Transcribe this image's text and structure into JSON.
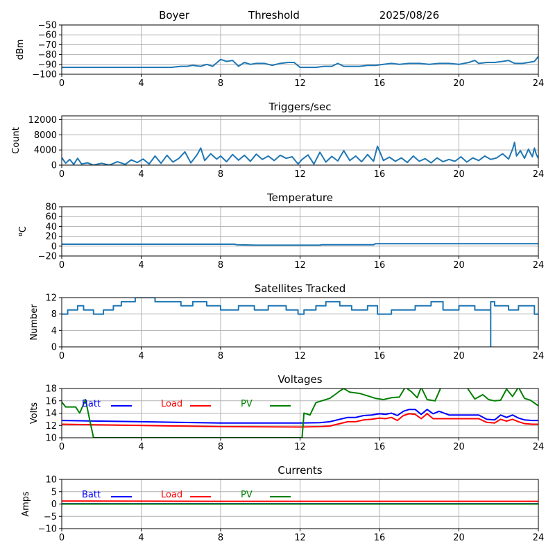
{
  "header": {
    "station": "Boyer",
    "mode": "Threshold",
    "date": "2025/08/26"
  },
  "colors": {
    "default_series": "#1f77b4",
    "batt": "#0000ff",
    "load": "#ff0000",
    "pv": "#008000",
    "grid": "#b0b0b0"
  },
  "chart_data": [
    {
      "type": "line",
      "title": "",
      "xlabel": "",
      "ylabel": "dBm",
      "xlim": [
        0,
        24
      ],
      "ylim": [
        -100,
        -50
      ],
      "xticks": [
        0,
        4,
        8,
        12,
        16,
        20,
        24
      ],
      "yticks": [
        -100,
        -90,
        -80,
        -70,
        -60,
        -50
      ],
      "ytick_labels": [
        "−100",
        "−90",
        "−80",
        "−70",
        "−60",
        "−50"
      ],
      "grid": true,
      "series": [
        {
          "color": "#1f77b4",
          "x": [
            0,
            4.7,
            5.5,
            6.0,
            6.3,
            6.6,
            7.0,
            7.3,
            7.6,
            8.0,
            8.3,
            8.6,
            8.9,
            9.2,
            9.5,
            9.8,
            10.2,
            10.6,
            11.0,
            11.4,
            11.7,
            12.0,
            12.4,
            12.8,
            13.2,
            13.6,
            13.9,
            14.2,
            14.6,
            15.0,
            15.4,
            15.8,
            16.2,
            16.6,
            17.0,
            17.5,
            18.0,
            18.5,
            19.0,
            19.5,
            20.0,
            20.5,
            20.8,
            21.0,
            21.4,
            21.8,
            22.2,
            22.5,
            22.8,
            23.2,
            23.5,
            23.8,
            24.0
          ],
          "y": [
            -93,
            -93,
            -93,
            -92,
            -92,
            -91,
            -92,
            -90,
            -92,
            -85,
            -87,
            -86,
            -92,
            -88,
            -90,
            -89,
            -89,
            -91,
            -89,
            -88,
            -88,
            -93,
            -93,
            -93,
            -92,
            -92,
            -89,
            -92,
            -92,
            -92,
            -91,
            -91,
            -90,
            -89,
            -90,
            -89,
            -89,
            -90,
            -89,
            -89,
            -90,
            -88,
            -86,
            -89,
            -88,
            -88,
            -87,
            -86,
            -89,
            -89,
            -88,
            -87,
            -82
          ]
        }
      ]
    },
    {
      "type": "line",
      "title": "Triggers/sec",
      "xlabel": "",
      "ylabel": "Count",
      "xlim": [
        0,
        24
      ],
      "ylim": [
        0,
        13000
      ],
      "xticks": [
        0,
        4,
        8,
        12,
        16,
        20,
        24
      ],
      "yticks": [
        0,
        4000,
        8000,
        12000
      ],
      "ytick_labels": [
        "0",
        "4000",
        "8000",
        "12000"
      ],
      "grid": true,
      "series": [
        {
          "color": "#1f77b4",
          "x": [
            0,
            0.2,
            0.4,
            0.6,
            0.8,
            1.0,
            1.3,
            1.6,
            2.0,
            2.4,
            2.8,
            3.2,
            3.5,
            3.8,
            4.1,
            4.4,
            4.7,
            5.0,
            5.3,
            5.6,
            5.9,
            6.2,
            6.5,
            6.8,
            7.0,
            7.2,
            7.5,
            7.8,
            8.0,
            8.3,
            8.6,
            8.9,
            9.2,
            9.5,
            9.8,
            10.1,
            10.4,
            10.7,
            11.0,
            11.3,
            11.6,
            11.9,
            12.1,
            12.4,
            12.7,
            13.0,
            13.3,
            13.6,
            13.9,
            14.2,
            14.5,
            14.8,
            15.1,
            15.4,
            15.7,
            15.9,
            16.2,
            16.5,
            16.8,
            17.1,
            17.4,
            17.7,
            18.0,
            18.3,
            18.6,
            18.9,
            19.2,
            19.5,
            19.8,
            20.1,
            20.4,
            20.7,
            21.0,
            21.3,
            21.6,
            21.9,
            22.2,
            22.5,
            22.7,
            22.8,
            22.9,
            23.1,
            23.3,
            23.5,
            23.7,
            23.8,
            23.9,
            24.0
          ],
          "y": [
            2000,
            500,
            1500,
            200,
            1800,
            300,
            600,
            0,
            500,
            0,
            900,
            200,
            1400,
            700,
            1600,
            300,
            2400,
            500,
            2600,
            800,
            1800,
            3500,
            600,
            2600,
            4500,
            1200,
            3000,
            1600,
            2400,
            900,
            2800,
            1300,
            2600,
            1000,
            2900,
            1500,
            2400,
            1200,
            2600,
            1800,
            2200,
            300,
            1500,
            2700,
            300,
            3400,
            800,
            2300,
            1100,
            3800,
            1200,
            2400,
            900,
            2800,
            1000,
            5000,
            1200,
            2100,
            1000,
            1900,
            700,
            2400,
            1000,
            1700,
            600,
            1900,
            900,
            1500,
            1000,
            2200,
            800,
            1900,
            1200,
            2400,
            1500,
            1900,
            3000,
            1600,
            4200,
            6000,
            2400,
            3800,
            1800,
            4200,
            2200,
            4500,
            2800,
            1800
          ]
        }
      ]
    },
    {
      "type": "line",
      "title": "Temperature",
      "xlabel": "",
      "ylabel": "°C",
      "ylabel_sup": "o",
      "ylabel_base": "C",
      "xlim": [
        0,
        24
      ],
      "ylim": [
        -20,
        80
      ],
      "xticks": [
        0,
        4,
        8,
        12,
        16,
        20,
        24
      ],
      "yticks": [
        -20,
        0,
        20,
        40,
        60,
        80
      ],
      "ytick_labels": [
        "−20",
        "0",
        "20",
        "40",
        "60",
        "80"
      ],
      "grid": true,
      "series": [
        {
          "color": "#1f77b4",
          "x": [
            0,
            8.7,
            8.8,
            9.8,
            13.0,
            13.1,
            15.7,
            15.8,
            24.0
          ],
          "y": [
            4,
            4,
            3,
            2,
            2,
            3,
            3,
            5,
            5
          ]
        }
      ]
    },
    {
      "type": "line",
      "title": "Satellites Tracked",
      "xlabel": "",
      "ylabel": "Number",
      "xlim": [
        0,
        24
      ],
      "ylim": [
        0,
        12
      ],
      "xticks": [
        0,
        4,
        8,
        12,
        16,
        20,
        24
      ],
      "yticks": [
        0,
        4,
        8,
        12
      ],
      "ytick_labels": [
        "0",
        "4",
        "8",
        "12"
      ],
      "grid": true,
      "series": [
        {
          "color": "#1f77b4",
          "x": [
            0,
            0.3,
            0.3,
            0.8,
            0.8,
            1.1,
            1.1,
            1.6,
            1.6,
            2.1,
            2.1,
            2.6,
            2.6,
            3.0,
            3.0,
            3.7,
            3.7,
            4.7,
            4.7,
            6.0,
            6.0,
            6.6,
            6.6,
            7.3,
            7.3,
            8.0,
            8.0,
            8.9,
            8.9,
            9.7,
            9.7,
            10.4,
            10.4,
            11.3,
            11.3,
            11.9,
            11.9,
            12.2,
            12.2,
            12.8,
            12.8,
            13.3,
            13.3,
            14.0,
            14.0,
            14.6,
            14.6,
            15.4,
            15.4,
            15.9,
            15.9,
            16.6,
            16.6,
            17.8,
            17.8,
            18.6,
            18.6,
            19.2,
            19.2,
            20.0,
            20.0,
            20.8,
            20.8,
            21.6,
            21.6,
            21.6,
            21.6,
            21.8,
            21.8,
            22.5,
            22.5,
            23.0,
            23.0,
            23.8,
            23.8,
            24.0
          ],
          "y": [
            8,
            8,
            9,
            9,
            10,
            10,
            9,
            9,
            8,
            8,
            9,
            9,
            10,
            10,
            11,
            11,
            12,
            12,
            11,
            11,
            10,
            10,
            11,
            11,
            10,
            10,
            9,
            9,
            10,
            10,
            9,
            9,
            10,
            10,
            9,
            9,
            8,
            8,
            9,
            9,
            10,
            10,
            11,
            11,
            10,
            10,
            9,
            9,
            10,
            10,
            8,
            8,
            9,
            9,
            10,
            10,
            11,
            11,
            9,
            9,
            10,
            10,
            9,
            9,
            0,
            0,
            11,
            11,
            10,
            10,
            9,
            9,
            10,
            10,
            8,
            8
          ]
        }
      ]
    },
    {
      "type": "line",
      "title": "Voltages",
      "xlabel": "",
      "ylabel": "Volts",
      "xlim": [
        0,
        24
      ],
      "ylim": [
        10,
        18
      ],
      "xticks": [
        0,
        4,
        8,
        12,
        16,
        20,
        24
      ],
      "yticks": [
        10,
        12,
        14,
        16,
        18
      ],
      "ytick_labels": [
        "10",
        "12",
        "14",
        "16",
        "18"
      ],
      "grid": true,
      "legend": {
        "placement": "top-left, horizontal, three entries",
        "entries": [
          "Batt",
          "Load",
          "PV"
        ]
      },
      "series": [
        {
          "name": "Batt",
          "color": "#0000ff",
          "x": [
            0,
            4,
            8,
            12,
            13.0,
            13.5,
            14.0,
            14.4,
            14.8,
            15.2,
            15.6,
            16.0,
            16.3,
            16.6,
            16.9,
            17.2,
            17.5,
            17.8,
            18.1,
            18.4,
            18.7,
            19.0,
            19.5,
            20.0,
            20.5,
            21.0,
            21.4,
            21.8,
            22.1,
            22.4,
            22.7,
            23.0,
            23.3,
            23.7,
            24.0
          ],
          "y": [
            12.8,
            12.6,
            12.4,
            12.4,
            12.45,
            12.6,
            13.0,
            13.3,
            13.3,
            13.6,
            13.7,
            13.9,
            13.8,
            14.0,
            13.6,
            14.3,
            14.6,
            14.6,
            13.8,
            14.6,
            13.9,
            14.3,
            13.7,
            13.7,
            13.7,
            13.7,
            13.0,
            12.9,
            13.7,
            13.3,
            13.7,
            13.2,
            12.9,
            12.8,
            12.8
          ]
        },
        {
          "name": "Load",
          "color": "#ff0000",
          "x": [
            0,
            4,
            8,
            12,
            13.0,
            13.5,
            14.0,
            14.4,
            14.8,
            15.2,
            15.6,
            16.0,
            16.3,
            16.6,
            16.9,
            17.2,
            17.5,
            17.8,
            18.1,
            18.4,
            18.7,
            19.0,
            19.5,
            20.0,
            20.5,
            21.0,
            21.4,
            21.8,
            22.1,
            22.4,
            22.7,
            23.0,
            23.3,
            23.7,
            24.0
          ],
          "y": [
            12.2,
            12.0,
            11.8,
            11.75,
            11.8,
            11.9,
            12.3,
            12.6,
            12.6,
            12.9,
            13.0,
            13.2,
            13.1,
            13.3,
            12.8,
            13.6,
            13.9,
            13.8,
            13.1,
            13.9,
            13.1,
            13.1,
            13.1,
            13.1,
            13.1,
            13.1,
            12.5,
            12.4,
            13.0,
            12.7,
            13.0,
            12.6,
            12.3,
            12.2,
            12.2
          ]
        },
        {
          "name": "PV",
          "color": "#008000",
          "x": [
            0,
            0.2,
            0.7,
            0.9,
            1.2,
            1.4,
            1.6,
            12.1,
            12.2,
            12.5,
            12.8,
            13.0,
            13.5,
            13.8,
            14.0,
            14.2,
            14.5,
            15.0,
            15.4,
            15.8,
            16.2,
            16.6,
            17.0,
            17.3,
            17.6,
            17.9,
            18.1,
            18.4,
            18.8,
            19.1,
            19.5,
            20.0,
            20.4,
            20.8,
            21.2,
            21.5,
            21.8,
            22.1,
            22.4,
            22.7,
            23.0,
            23.3,
            23.6,
            24.0
          ],
          "y": [
            15.8,
            15.0,
            15.0,
            14.0,
            16.2,
            13.0,
            10.0,
            10.0,
            14.0,
            13.7,
            15.7,
            15.9,
            16.4,
            17.1,
            17.6,
            18.0,
            17.4,
            17.2,
            16.8,
            16.4,
            16.2,
            16.5,
            16.6,
            18.2,
            17.5,
            16.5,
            18.2,
            16.2,
            16.0,
            18.2,
            18.2,
            18.2,
            18.2,
            16.3,
            17.0,
            16.2,
            16.0,
            16.1,
            17.9,
            16.7,
            18.2,
            16.4,
            16.1,
            15.2
          ]
        }
      ]
    },
    {
      "type": "line",
      "title": "Currents",
      "xlabel": "",
      "ylabel": "Amps",
      "xlim": [
        0,
        24
      ],
      "ylim": [
        -10,
        10
      ],
      "xticks": [
        0,
        4,
        8,
        12,
        16,
        20,
        24
      ],
      "yticks": [
        -10,
        -5,
        0,
        5,
        10
      ],
      "ytick_labels": [
        "−10",
        "−5",
        "0",
        "5",
        "10"
      ],
      "grid": true,
      "legend": {
        "placement": "top-left, horizontal, three entries",
        "entries": [
          "Batt",
          "Load",
          "PV"
        ]
      },
      "series": [
        {
          "name": "Batt",
          "color": "#0000ff",
          "x": [
            0,
            24
          ],
          "y": [
            0.1,
            0.1
          ]
        },
        {
          "name": "Load",
          "color": "#ff0000",
          "x": [
            0,
            4,
            8,
            12,
            16,
            20,
            24
          ],
          "y": [
            1.2,
            1.15,
            1.1,
            1.1,
            1.1,
            1.1,
            1.1
          ]
        },
        {
          "name": "PV",
          "color": "#008000",
          "x": [
            0,
            24
          ],
          "y": [
            0.0,
            0.0
          ]
        }
      ]
    }
  ]
}
